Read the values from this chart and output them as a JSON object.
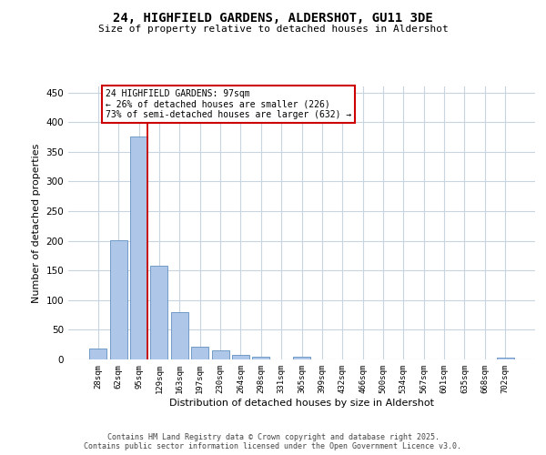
{
  "title": "24, HIGHFIELD GARDENS, ALDERSHOT, GU11 3DE",
  "subtitle": "Size of property relative to detached houses in Aldershot",
  "xlabel": "Distribution of detached houses by size in Aldershot",
  "ylabel": "Number of detached properties",
  "bar_labels": [
    "28sqm",
    "62sqm",
    "95sqm",
    "129sqm",
    "163sqm",
    "197sqm",
    "230sqm",
    "264sqm",
    "298sqm",
    "331sqm",
    "365sqm",
    "399sqm",
    "432sqm",
    "466sqm",
    "500sqm",
    "534sqm",
    "567sqm",
    "601sqm",
    "635sqm",
    "668sqm",
    "702sqm"
  ],
  "bar_values": [
    18,
    201,
    375,
    158,
    80,
    22,
    15,
    7,
    4,
    0,
    4,
    0,
    0,
    0,
    0,
    0,
    0,
    0,
    0,
    0,
    3
  ],
  "bar_color": "#aec6e8",
  "bar_edge_color": "#6090c0",
  "property_line_index": 2,
  "property_line_color": "#cc0000",
  "annotation_text": "24 HIGHFIELD GARDENS: 97sqm\n← 26% of detached houses are smaller (226)\n73% of semi-detached houses are larger (632) →",
  "annotation_box_color": "#ffffff",
  "annotation_box_edge": "#cc0000",
  "ylim": [
    0,
    460
  ],
  "yticks": [
    0,
    50,
    100,
    150,
    200,
    250,
    300,
    350,
    400,
    450
  ],
  "background_color": "#ffffff",
  "grid_color": "#c8d4e0",
  "footer_line1": "Contains HM Land Registry data © Crown copyright and database right 2025.",
  "footer_line2": "Contains public sector information licensed under the Open Government Licence v3.0."
}
